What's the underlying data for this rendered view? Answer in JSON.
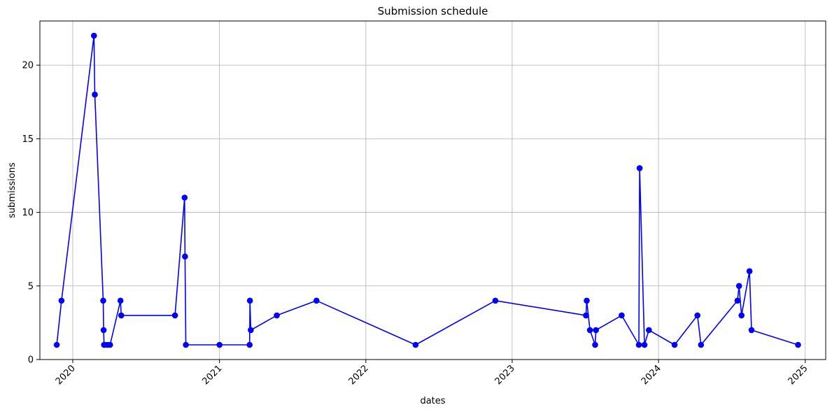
{
  "chart_data": {
    "type": "line",
    "title": "Submission schedule",
    "xlabel": "dates",
    "ylabel": "submissions",
    "x_axis_type": "date",
    "xlim": [
      "2019-10-11",
      "2025-02-21"
    ],
    "ylim": [
      0,
      23
    ],
    "x_ticks": [
      {
        "date": "2020-01-01",
        "label": "2020"
      },
      {
        "date": "2021-01-01",
        "label": "2021"
      },
      {
        "date": "2022-01-01",
        "label": "2022"
      },
      {
        "date": "2023-01-01",
        "label": "2023"
      },
      {
        "date": "2024-01-01",
        "label": "2024"
      },
      {
        "date": "2025-01-01",
        "label": "2025"
      }
    ],
    "y_ticks": [
      0,
      5,
      10,
      15,
      20
    ],
    "grid": true,
    "x_tick_rotation": 45,
    "line_color": "#0000ff",
    "marker": "circle",
    "series": [
      {
        "x": [
          "2019-11-22",
          "2019-12-04",
          "2020-02-23",
          "2020-02-25",
          "2020-03-17",
          "2020-03-18",
          "2020-03-19",
          "2020-03-20",
          "2020-03-27",
          "2020-04-03",
          "2020-04-29",
          "2020-05-01",
          "2020-09-12",
          "2020-10-06",
          "2020-10-07",
          "2020-10-09",
          "2021-01-01",
          "2021-03-17",
          "2021-03-18",
          "2021-03-20",
          "2021-05-24",
          "2021-08-31",
          "2022-05-05",
          "2022-11-20",
          "2023-07-04",
          "2023-07-06",
          "2023-07-14",
          "2023-07-27",
          "2023-07-29",
          "2023-10-01",
          "2023-11-13",
          "2023-11-15",
          "2023-11-27",
          "2023-12-08",
          "2024-02-10",
          "2024-04-07",
          "2024-04-16",
          "2024-07-16",
          "2024-07-20",
          "2024-07-26",
          "2024-08-15",
          "2024-08-20",
          "2024-12-14"
        ],
        "y": [
          1,
          4,
          22,
          18,
          4,
          2,
          1,
          1,
          1,
          1,
          4,
          3,
          3,
          11,
          7,
          1,
          1,
          1,
          4,
          2,
          3,
          4,
          1,
          4,
          3,
          4,
          2,
          1,
          2,
          3,
          1,
          13,
          1,
          2,
          1,
          3,
          1,
          4,
          5,
          3,
          6,
          2,
          1
        ]
      }
    ]
  }
}
